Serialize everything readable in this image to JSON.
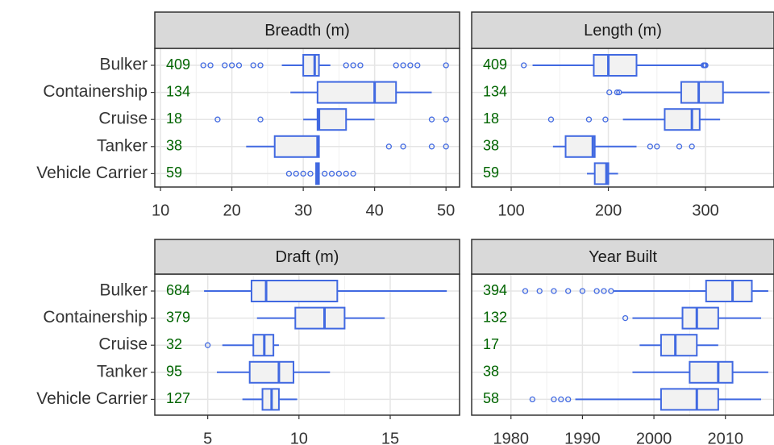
{
  "chart_data": [
    {
      "type": "box",
      "title": "Breadth (m)",
      "color": "#4169e1",
      "count_color": "#006400",
      "grid": true,
      "categories": [
        "Bulker",
        "Containership",
        "Cruise",
        "Tanker",
        "Vehicle Carrier"
      ],
      "counts": [
        409,
        134,
        18,
        38,
        59
      ],
      "boxes": [
        {
          "whislo": 27,
          "q1": 30,
          "median": 31.6,
          "q3": 32.2,
          "whishi": 33.8,
          "outliers": [
            16,
            17,
            19,
            20,
            21,
            23,
            24,
            36,
            37,
            38,
            43,
            44,
            45,
            46,
            50
          ]
        },
        {
          "whislo": 28.2,
          "q1": 32,
          "median": 40,
          "q3": 43,
          "whishi": 48,
          "outliers": []
        },
        {
          "whislo": 30,
          "q1": 32,
          "median": 32.2,
          "q3": 36,
          "whishi": 40,
          "outliers": [
            18,
            24,
            48,
            50
          ]
        },
        {
          "whislo": 22,
          "q1": 26,
          "median": 32,
          "q3": 32.2,
          "whishi": 32.2,
          "outliers": [
            42,
            44,
            48,
            50
          ]
        },
        {
          "whislo": 31.8,
          "q1": 31.8,
          "median": 32,
          "q3": 32.2,
          "whishi": 32.2,
          "outliers": [
            28,
            29,
            30,
            31,
            33,
            34,
            35,
            36,
            37
          ]
        }
      ],
      "xlim": [
        9.2,
        51.9
      ],
      "xticks": [
        10,
        20,
        30,
        40,
        50
      ]
    },
    {
      "type": "box",
      "title": "Length (m)",
      "color": "#4169e1",
      "count_color": "#006400",
      "grid": true,
      "counts": [
        409,
        134,
        18,
        38,
        59
      ],
      "boxes": [
        {
          "whislo": 122,
          "q1": 185,
          "median": 200,
          "q3": 229,
          "whishi": 296,
          "outliers": [
            113,
            298,
            299,
            300
          ]
        },
        {
          "whislo": 213,
          "q1": 275,
          "median": 293,
          "q3": 318,
          "whishi": 366,
          "outliers": [
            201,
            209,
            211
          ]
        },
        {
          "whislo": 215,
          "q1": 258,
          "median": 286,
          "q3": 294,
          "whishi": 315,
          "outliers": [
            141,
            180,
            197
          ]
        },
        {
          "whislo": 143,
          "q1": 156,
          "median": 184,
          "q3": 186,
          "whishi": 229,
          "outliers": [
            243,
            250,
            273,
            286
          ]
        },
        {
          "whislo": 178,
          "q1": 186,
          "median": 198,
          "q3": 200,
          "whishi": 210,
          "outliers": []
        }
      ],
      "xlim": [
        59.3,
        370.5
      ],
      "xticks": [
        100,
        200,
        300
      ]
    },
    {
      "type": "box",
      "title": "Draft (m)",
      "color": "#4169e1",
      "count_color": "#006400",
      "grid": true,
      "categories": [
        "Bulker",
        "Containership",
        "Cruise",
        "Tanker",
        "Vehicle Carrier"
      ],
      "counts": [
        684,
        379,
        32,
        95,
        127
      ],
      "boxes": [
        {
          "whislo": 4.8,
          "q1": 7.4,
          "median": 8.2,
          "q3": 12.1,
          "whishi": 18.1,
          "outliers": []
        },
        {
          "whislo": 7.7,
          "q1": 9.8,
          "median": 11.4,
          "q3": 12.5,
          "whishi": 14.7,
          "outliers": []
        },
        {
          "whislo": 5.8,
          "q1": 7.5,
          "median": 8.1,
          "q3": 8.6,
          "whishi": 8.9,
          "outliers": [
            5
          ]
        },
        {
          "whislo": 5.5,
          "q1": 7.3,
          "median": 8.9,
          "q3": 9.7,
          "whishi": 11.7,
          "outliers": []
        },
        {
          "whislo": 6.9,
          "q1": 8,
          "median": 8.5,
          "q3": 8.9,
          "whishi": 9.9,
          "outliers": []
        }
      ],
      "xlim": [
        2.1,
        18.8
      ],
      "xticks": [
        5,
        10,
        15
      ]
    },
    {
      "type": "box",
      "title": "Year Built",
      "color": "#4169e1",
      "count_color": "#006400",
      "grid": true,
      "counts": [
        394,
        132,
        17,
        38,
        58
      ],
      "boxes": [
        {
          "whislo": 1994.4,
          "q1": 2007.3,
          "median": 2011,
          "q3": 2013.7,
          "whishi": 2016,
          "outliers": [
            1982,
            1984,
            1986,
            1988,
            1990,
            1992,
            1993,
            1994
          ]
        },
        {
          "whislo": 1997,
          "q1": 2004,
          "median": 2006,
          "q3": 2009,
          "whishi": 2015,
          "outliers": [
            1996
          ]
        },
        {
          "whislo": 1998,
          "q1": 2001,
          "median": 2003,
          "q3": 2006,
          "whishi": 2009,
          "outliers": []
        },
        {
          "whislo": 1997,
          "q1": 2005,
          "median": 2009,
          "q3": 2011,
          "whishi": 2016,
          "outliers": []
        },
        {
          "whislo": 1989,
          "q1": 2001,
          "median": 2006,
          "q3": 2009,
          "whishi": 2015,
          "outliers": [
            1983,
            1986,
            1987,
            1988
          ]
        }
      ],
      "xlim": [
        1974.5,
        2016.8
      ],
      "xticks": [
        1980,
        1990,
        2000,
        2010
      ]
    }
  ]
}
